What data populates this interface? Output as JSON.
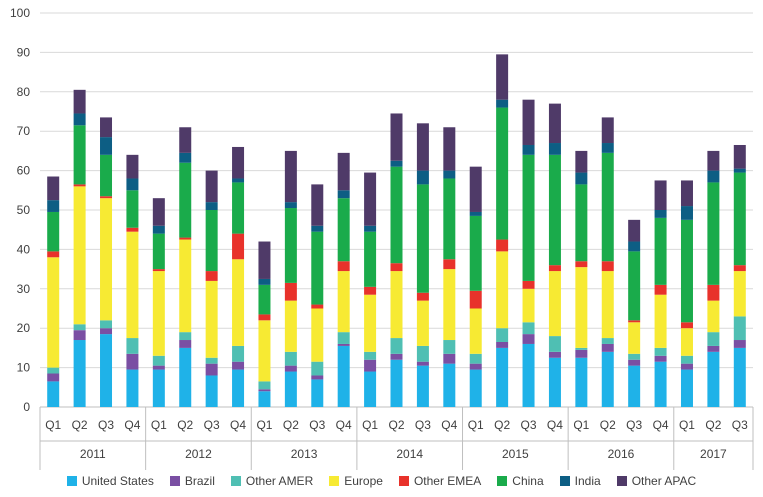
{
  "chart_data": {
    "type": "bar",
    "stacked": true,
    "ylim": [
      0,
      100
    ],
    "y_ticks": [
      "0",
      "10",
      "20",
      "30",
      "40",
      "50",
      "60",
      "70",
      "80",
      "90",
      "100"
    ],
    "grid": true,
    "legend_position": "bottom",
    "years": [
      {
        "label": "2011",
        "quarters": [
          "Q1",
          "Q2",
          "Q3",
          "Q4"
        ]
      },
      {
        "label": "2012",
        "quarters": [
          "Q1",
          "Q2",
          "Q3",
          "Q4"
        ]
      },
      {
        "label": "2013",
        "quarters": [
          "Q1",
          "Q2",
          "Q3",
          "Q4"
        ]
      },
      {
        "label": "2014",
        "quarters": [
          "Q1",
          "Q2",
          "Q3",
          "Q4"
        ]
      },
      {
        "label": "2015",
        "quarters": [
          "Q1",
          "Q2",
          "Q3",
          "Q4"
        ]
      },
      {
        "label": "2016",
        "quarters": [
          "Q1",
          "Q2",
          "Q3",
          "Q4"
        ]
      },
      {
        "label": "2017",
        "quarters": [
          "Q1",
          "Q2",
          "Q3"
        ]
      }
    ],
    "categories": [
      "2011 Q1",
      "2011 Q2",
      "2011 Q3",
      "2011 Q4",
      "2012 Q1",
      "2012 Q2",
      "2012 Q3",
      "2012 Q4",
      "2013 Q1",
      "2013 Q2",
      "2013 Q3",
      "2013 Q4",
      "2014 Q1",
      "2014 Q2",
      "2014 Q3",
      "2014 Q4",
      "2015 Q1",
      "2015 Q2",
      "2015 Q3",
      "2015 Q4",
      "2016 Q1",
      "2016 Q2",
      "2016 Q3",
      "2016 Q4",
      "2017 Q1",
      "2017 Q2",
      "2017 Q3"
    ],
    "series": [
      {
        "name": "United States",
        "color": "#1fb2e8",
        "values": [
          6.5,
          17,
          18.5,
          9.5,
          9.5,
          15,
          8,
          9.5,
          4,
          9,
          7,
          15.5,
          9,
          12,
          10.5,
          11,
          9.5,
          15,
          16,
          12.5,
          12.5,
          14,
          10.5,
          11.5,
          9.5,
          14,
          15
        ]
      },
      {
        "name": "Brazil",
        "color": "#7a4fa3",
        "values": [
          2,
          2.5,
          1.5,
          4,
          1,
          2,
          3,
          2,
          0.5,
          1.5,
          1,
          0.5,
          3,
          1.5,
          1,
          2.5,
          1.5,
          1.5,
          2.5,
          1.5,
          2,
          2,
          1.5,
          1.5,
          1.5,
          1.5,
          2
        ]
      },
      {
        "name": "Other AMER",
        "color": "#4fbfb3",
        "values": [
          1.5,
          1.5,
          2,
          4,
          2.5,
          2,
          1.5,
          4,
          2,
          3.5,
          3.5,
          3,
          2,
          4,
          4,
          3.5,
          2.5,
          3.5,
          3,
          4,
          0.5,
          1.5,
          1.5,
          2,
          2,
          3.5,
          6
        ]
      },
      {
        "name": "Europe",
        "color": "#f7ea33",
        "values": [
          28,
          35,
          31,
          27,
          21.5,
          23.5,
          19.5,
          22,
          15.5,
          13,
          13.5,
          15.5,
          14.5,
          17,
          11.5,
          18,
          11.5,
          19.5,
          8.5,
          16.5,
          20.5,
          17,
          8,
          13.5,
          7,
          8,
          11.5
        ]
      },
      {
        "name": "Other EMEA",
        "color": "#e8322b",
        "values": [
          1.5,
          0.5,
          0.5,
          1,
          0.5,
          0.5,
          2.5,
          6.5,
          1.5,
          4.5,
          1,
          2.5,
          2,
          2,
          2,
          2.5,
          4.5,
          3,
          2,
          1.5,
          1.5,
          2.5,
          0.5,
          2.5,
          1.5,
          4,
          1.5
        ]
      },
      {
        "name": "China",
        "color": "#1aab4b",
        "values": [
          10,
          15,
          10.5,
          9.5,
          9,
          19,
          15.5,
          13,
          7.5,
          19,
          18.5,
          16,
          14,
          24.5,
          27.5,
          20.5,
          19,
          33.5,
          32,
          28,
          19.5,
          27.5,
          17.5,
          17,
          26,
          26,
          23.5
        ]
      },
      {
        "name": "India",
        "color": "#0d5e84",
        "values": [
          3,
          3,
          4.5,
          3,
          2,
          2.5,
          2,
          1,
          1.5,
          1.5,
          1.5,
          2,
          1.5,
          1.5,
          3.5,
          2,
          1,
          2,
          2.5,
          3,
          3,
          2.5,
          2.5,
          2,
          3.5,
          3,
          1
        ]
      },
      {
        "name": "Other APAC",
        "color": "#4f3a68",
        "values": [
          6,
          6,
          5,
          6,
          7,
          6.5,
          8,
          8,
          9.5,
          13,
          10.5,
          9.5,
          13.5,
          12,
          12,
          11,
          11.5,
          11.5,
          11.5,
          10,
          5.5,
          6.5,
          5.5,
          7.5,
          6.5,
          5,
          6
        ]
      }
    ]
  }
}
